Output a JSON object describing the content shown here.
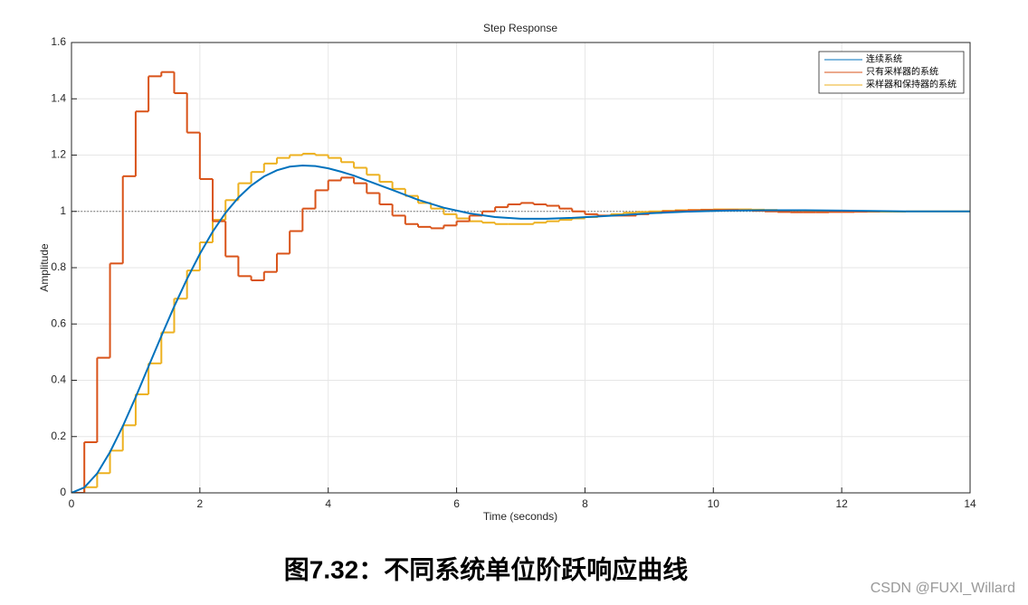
{
  "chart_data": {
    "type": "line",
    "title": "Step Response",
    "xlabel": "Time (seconds)",
    "ylabel": "Amplitude",
    "xlim": [
      0,
      14
    ],
    "ylim": [
      0,
      1.6
    ],
    "xticks": [
      0,
      2,
      4,
      6,
      8,
      10,
      12,
      14
    ],
    "yticks": [
      0,
      0.2,
      0.4,
      0.6,
      0.8,
      1,
      1.2,
      1.4,
      1.6
    ],
    "grid": true,
    "legend": "upper right",
    "reference_line": 1,
    "series": [
      {
        "name": "连续系统",
        "color": "#0072BD",
        "drawstyle": "line",
        "x": [
          0,
          0.2,
          0.4,
          0.6,
          0.8,
          1,
          1.2,
          1.4,
          1.6,
          1.8,
          2,
          2.2,
          2.4,
          2.6,
          2.8,
          3,
          3.2,
          3.4,
          3.6,
          3.8,
          4,
          4.2,
          4.4,
          4.6,
          4.8,
          5,
          5.4,
          5.8,
          6.2,
          6.6,
          7,
          7.4,
          7.8,
          8.2,
          8.6,
          9,
          9.6,
          10.2,
          10.8,
          11.4,
          12,
          13,
          14
        ],
        "values": [
          0,
          0.019,
          0.069,
          0.145,
          0.237,
          0.34,
          0.449,
          0.557,
          0.662,
          0.76,
          0.849,
          0.928,
          0.995,
          1.049,
          1.092,
          1.124,
          1.146,
          1.159,
          1.163,
          1.161,
          1.153,
          1.141,
          1.127,
          1.11,
          1.093,
          1.076,
          1.041,
          1.013,
          0.993,
          0.98,
          0.974,
          0.974,
          0.977,
          0.982,
          0.987,
          0.993,
          0.999,
          1.003,
          1.004,
          1.004,
          1.003,
          1,
          1
        ]
      },
      {
        "name": "只有采样器的系统",
        "color": "#D95319",
        "drawstyle": "steps",
        "x": [
          0,
          0.2,
          0.4,
          0.6,
          0.8,
          1,
          1.2,
          1.4,
          1.6,
          1.8,
          2,
          2.2,
          2.4,
          2.6,
          2.8,
          3,
          3.2,
          3.4,
          3.6,
          3.8,
          4,
          4.2,
          4.4,
          4.6,
          4.8,
          5,
          5.2,
          5.4,
          5.6,
          5.8,
          6,
          6.2,
          6.4,
          6.6,
          6.8,
          7,
          7.2,
          7.4,
          7.6,
          7.8,
          8,
          8.2,
          8.4,
          8.6,
          8.8,
          9,
          9.2,
          9.4,
          9.6,
          9.8,
          10,
          10.2,
          10.4,
          10.6,
          10.8,
          11,
          11.2,
          11.4,
          11.6,
          11.8,
          12,
          12.2,
          12.4
        ],
        "values": [
          0,
          0.18,
          0.48,
          0.815,
          1.125,
          1.355,
          1.48,
          1.495,
          1.42,
          1.28,
          1.115,
          0.965,
          0.84,
          0.77,
          0.755,
          0.785,
          0.85,
          0.93,
          1.01,
          1.075,
          1.11,
          1.12,
          1.1,
          1.065,
          1.025,
          0.985,
          0.955,
          0.945,
          0.94,
          0.95,
          0.965,
          0.985,
          1,
          1.015,
          1.025,
          1.03,
          1.025,
          1.02,
          1.01,
          1,
          0.99,
          0.985,
          0.985,
          0.985,
          0.99,
          0.995,
          1,
          1.002,
          1.004,
          1.005,
          1.005,
          1.005,
          1.004,
          1.002,
          1,
          0.998,
          0.997,
          0.997,
          0.997,
          0.998,
          0.998,
          0.999,
          1
        ]
      },
      {
        "name": "采样器和保持器的系统",
        "color": "#EDB120",
        "drawstyle": "steps",
        "x": [
          0,
          0.2,
          0.4,
          0.6,
          0.8,
          1,
          1.2,
          1.4,
          1.6,
          1.8,
          2,
          2.2,
          2.4,
          2.6,
          2.8,
          3,
          3.2,
          3.4,
          3.6,
          3.8,
          4,
          4.2,
          4.4,
          4.6,
          4.8,
          5,
          5.2,
          5.4,
          5.6,
          5.8,
          6,
          6.2,
          6.4,
          6.6,
          6.8,
          7,
          7.2,
          7.4,
          7.6,
          7.8,
          8,
          8.2,
          8.4,
          8.6,
          8.8,
          9,
          9.2,
          9.4,
          9.6,
          9.8,
          10,
          10.2,
          10.4,
          10.6,
          10.8,
          11,
          11.2,
          11.4,
          11.6,
          11.8,
          12,
          12.2,
          12.4,
          12.6,
          12.8,
          13,
          13.2,
          13.4,
          13.6,
          13.8
        ],
        "values": [
          0,
          0.02,
          0.07,
          0.15,
          0.24,
          0.35,
          0.46,
          0.57,
          0.69,
          0.79,
          0.89,
          0.97,
          1.04,
          1.1,
          1.14,
          1.17,
          1.19,
          1.2,
          1.205,
          1.2,
          1.19,
          1.175,
          1.155,
          1.13,
          1.105,
          1.08,
          1.055,
          1.03,
          1.01,
          0.99,
          0.975,
          0.965,
          0.96,
          0.955,
          0.955,
          0.955,
          0.96,
          0.965,
          0.97,
          0.975,
          0.98,
          0.985,
          0.99,
          0.995,
          0.998,
          1,
          1.002,
          1.004,
          1.005,
          1.006,
          1.007,
          1.007,
          1.007,
          1.006,
          1.005,
          1.004,
          1.003,
          1.002,
          1.001,
          1,
          1,
          0.999,
          0.999,
          0.999,
          0.999,
          1,
          1,
          1,
          1,
          1
        ]
      }
    ]
  },
  "caption": "图7.32：不同系统单位阶跃响应曲线",
  "watermark": "CSDN @FUXI_Willard"
}
